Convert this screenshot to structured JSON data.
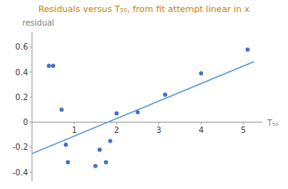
{
  "chart_data": {
    "type": "scatter",
    "title": "Residuals versus T₅₀, from fit attempt linear in x",
    "x_label": "T₅₀",
    "y_label": "residual",
    "series": [
      {
        "type": "scatter",
        "color": "#4472c4",
        "x": [
          0.4,
          0.5,
          0.7,
          0.8,
          0.85,
          1.5,
          1.6,
          1.75,
          1.85,
          2.0,
          2.5,
          3.15,
          4.0,
          5.1
        ],
        "values": [
          0.45,
          0.45,
          0.1,
          -0.18,
          -0.32,
          -0.35,
          -0.22,
          -0.32,
          -0.15,
          0.07,
          0.08,
          0.22,
          0.39,
          0.58
        ]
      },
      {
        "type": "line",
        "color": "#5b9bd5",
        "x": [
          0.0,
          5.25
        ],
        "values": [
          -0.252,
          0.483
        ]
      }
    ],
    "xlim": [
      0,
      5.45
    ],
    "ylim": [
      -0.47,
      0.72
    ],
    "xticks": [
      1,
      2,
      3,
      4,
      5
    ],
    "yticks": [
      -0.4,
      -0.2,
      0,
      0.2,
      0.4,
      0.6
    ],
    "grid": false
  }
}
